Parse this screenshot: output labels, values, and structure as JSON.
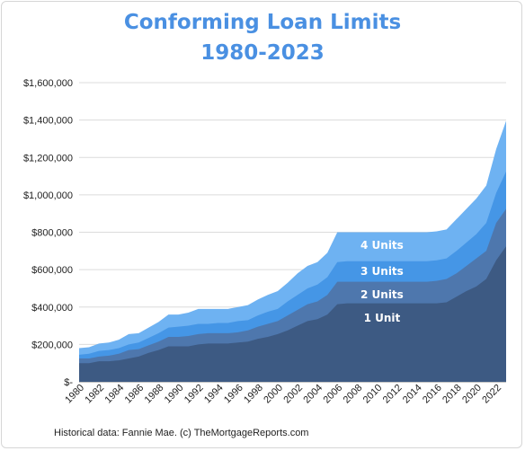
{
  "chart_data": {
    "type": "area",
    "stacked": false,
    "title_line1": "Conforming Loan Limits",
    "title_line2": "1980-2023",
    "source": "Historical data: Fannie Mae. (c) TheMortgageReports.com",
    "ylim": [
      0,
      1600000
    ],
    "y_ticks": [
      {
        "value": 0,
        "label": "$-"
      },
      {
        "value": 200000,
        "label": "$200,000"
      },
      {
        "value": 400000,
        "label": "$400,000"
      },
      {
        "value": 600000,
        "label": "$600,000"
      },
      {
        "value": 800000,
        "label": "$800,000"
      },
      {
        "value": 1000000,
        "label": "$1,000,000"
      },
      {
        "value": 1200000,
        "label": "$1,200,000"
      },
      {
        "value": 1400000,
        "label": "$1,400,000"
      },
      {
        "value": 1600000,
        "label": "$1,600,000"
      }
    ],
    "x_tick_labels": [
      "1980",
      "1982",
      "1984",
      "1986",
      "1988",
      "1990",
      "1992",
      "1994",
      "1996",
      "1998",
      "2000",
      "2002",
      "2004",
      "2006",
      "2008",
      "2010",
      "2012",
      "2014",
      "2016",
      "2018",
      "2020",
      "2022"
    ],
    "grid": true,
    "x": [
      1980,
      1981,
      1982,
      1983,
      1984,
      1985,
      1986,
      1987,
      1988,
      1989,
      1990,
      1991,
      1992,
      1993,
      1994,
      1995,
      1996,
      1997,
      1998,
      1999,
      2000,
      2001,
      2002,
      2003,
      2004,
      2005,
      2006,
      2007,
      2008,
      2009,
      2010,
      2011,
      2012,
      2013,
      2014,
      2015,
      2016,
      2017,
      2018,
      2019,
      2020,
      2021,
      2022,
      2023
    ],
    "series": [
      {
        "name": "4 Units",
        "color": "#6eb2f2",
        "values": [
          180000,
          185000,
          205000,
          210000,
          225000,
          255000,
          260000,
          290000,
          320000,
          360000,
          360000,
          370000,
          390000,
          390000,
          390000,
          390000,
          400000,
          410000,
          440000,
          465000,
          485000,
          530000,
          580000,
          620000,
          640000,
          690000,
          800000,
          800000,
          800000,
          800000,
          800000,
          800000,
          800000,
          800000,
          800000,
          800000,
          805000,
          815000,
          870000,
          925000,
          980000,
          1050000,
          1245000,
          1396000
        ]
      },
      {
        "name": "3 Units",
        "color": "#4596e6",
        "values": [
          145000,
          150000,
          165000,
          170000,
          180000,
          200000,
          210000,
          235000,
          260000,
          290000,
          295000,
          300000,
          310000,
          310000,
          315000,
          315000,
          325000,
          330000,
          355000,
          375000,
          390000,
          430000,
          465000,
          500000,
          520000,
          560000,
          640000,
          645000,
          645000,
          645000,
          645000,
          645000,
          645000,
          645000,
          645000,
          645000,
          650000,
          660000,
          700000,
          745000,
          790000,
          850000,
          1010000,
          1125000
        ]
      },
      {
        "name": "2 Units",
        "color": "#4e77ad",
        "values": [
          125000,
          125000,
          135000,
          140000,
          150000,
          170000,
          175000,
          195000,
          215000,
          240000,
          240000,
          245000,
          255000,
          260000,
          260000,
          260000,
          265000,
          275000,
          295000,
          310000,
          325000,
          355000,
          385000,
          415000,
          430000,
          465000,
          535000,
          535000,
          535000,
          535000,
          535000,
          535000,
          535000,
          535000,
          535000,
          535000,
          540000,
          550000,
          580000,
          620000,
          660000,
          700000,
          850000,
          925000
        ]
      },
      {
        "name": "1 Unit",
        "color": "#3d5a83",
        "values": [
          100000,
          100000,
          110000,
          110000,
          115000,
          125000,
          135000,
          155000,
          170000,
          190000,
          190000,
          190000,
          200000,
          205000,
          205000,
          205000,
          210000,
          215000,
          230000,
          240000,
          255000,
          275000,
          300000,
          325000,
          335000,
          360000,
          415000,
          420000,
          420000,
          420000,
          420000,
          420000,
          420000,
          420000,
          420000,
          420000,
          420000,
          425000,
          455000,
          485000,
          510000,
          550000,
          650000,
          725000
        ]
      }
    ],
    "series_label_positions_year": {
      "4 Units": 2010.5,
      "3 Units": 2010.5,
      "2 Units": 2010.5,
      "1 Unit": 2010.5
    },
    "series_label_values": {
      "4 Units": 730000,
      "3 Units": 590000,
      "2 Units": 465000,
      "1 Unit": 340000
    }
  }
}
